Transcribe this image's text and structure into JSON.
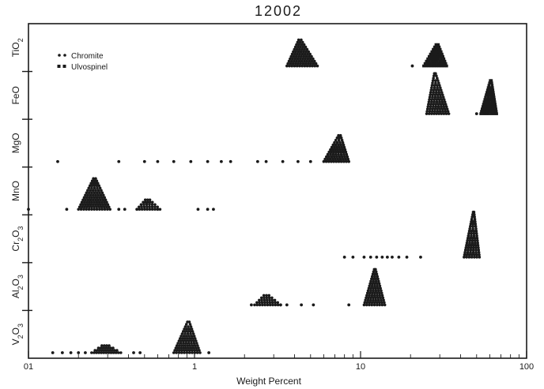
{
  "chart_data": {
    "type": "scatter",
    "title": "12002",
    "xlabel": "Weight Percent",
    "x_scale": "log",
    "xlim": [
      0.1,
      100
    ],
    "x_ticks": [
      "01",
      "1",
      "10",
      "100"
    ],
    "rows": [
      "TiO2",
      "FeO",
      "MgO",
      "MnO",
      "Cr2O3",
      "Al2O3",
      "V2O3"
    ],
    "row_labels": [
      {
        "base": "TiO",
        "sub": "2"
      },
      {
        "base": "FeO",
        "sub": ""
      },
      {
        "base": "MgO",
        "sub": ""
      },
      {
        "base": "MnO",
        "sub": ""
      },
      {
        "base": "Cr",
        "sub": "2",
        "base2": "O",
        "sub2": "3"
      },
      {
        "base": "Al",
        "sub": "2",
        "base2": "O",
        "sub2": "3"
      },
      {
        "base": "V",
        "sub": "2",
        "base2": "O",
        "sub2": "3"
      }
    ],
    "legend": {
      "placement": "top-left",
      "entries": [
        {
          "name": "Chromite",
          "marker": "dot"
        },
        {
          "name": "Ulvospinel",
          "marker": "square"
        }
      ]
    },
    "clusters": [
      {
        "row": "TiO2",
        "series": "Chromite",
        "center": 4.3,
        "min": 3.6,
        "max": 5.5,
        "stack": 12,
        "outliers": []
      },
      {
        "row": "TiO2",
        "series": "Ulvospinel",
        "center": 29,
        "min": 24,
        "max": 33,
        "stack": 10,
        "outliers": [
          20.5
        ]
      },
      {
        "row": "FeO",
        "series": "Chromite",
        "center": 28,
        "min": 25,
        "max": 34,
        "stack": 18,
        "outliers": []
      },
      {
        "row": "FeO",
        "series": "Ulvospinel",
        "center": 61,
        "min": 53,
        "max": 66,
        "stack": 15,
        "outliers": [
          50
        ]
      },
      {
        "row": "MgO",
        "series": "Chromite",
        "center": 7.5,
        "min": 6,
        "max": 8.5,
        "stack": 12,
        "outliers": [
          0.15,
          0.35,
          0.5,
          0.6,
          0.75,
          0.95,
          1.2,
          1.45,
          1.65,
          2.4,
          2.7,
          3.4,
          4.2,
          5.0
        ]
      },
      {
        "row": "MnO",
        "series": "Chromite",
        "center": 0.25,
        "min": 0.2,
        "max": 0.31,
        "stack": 14,
        "outliers": [
          0.1,
          0.17,
          0.35,
          0.38,
          0.45,
          0.6,
          1.05,
          1.2,
          1.3
        ]
      },
      {
        "row": "MnO",
        "series": "Chromite",
        "center": 0.52,
        "min": 0.45,
        "max": 0.62,
        "stack": 5,
        "outliers": []
      },
      {
        "row": "Cr2O3",
        "series": "Chromite",
        "center": 48,
        "min": 42,
        "max": 52,
        "stack": 20,
        "outliers": [
          8,
          9,
          10.5,
          11.5,
          12.5,
          13.5,
          14.5,
          15.5,
          17,
          19,
          23
        ]
      },
      {
        "row": "Al2O3",
        "series": "Chromite",
        "center": 12.2,
        "min": 10.5,
        "max": 14,
        "stack": 16,
        "outliers": [
          2.2,
          3.3,
          3.6,
          4.4,
          5.2,
          8.5
        ]
      },
      {
        "row": "Al2O3",
        "series": "Chromite",
        "center": 2.7,
        "min": 2.3,
        "max": 3.3,
        "stack": 5,
        "outliers": []
      },
      {
        "row": "V2O3",
        "series": "Chromite",
        "center": 0.92,
        "min": 0.75,
        "max": 1.08,
        "stack": 14,
        "outliers": [
          0.14,
          0.16,
          0.18,
          0.2,
          0.22,
          0.43,
          0.47,
          1.22
        ]
      },
      {
        "row": "V2O3",
        "series": "Chromite",
        "center": 0.29,
        "min": 0.24,
        "max": 0.36,
        "stack": 4,
        "outliers": []
      }
    ]
  }
}
